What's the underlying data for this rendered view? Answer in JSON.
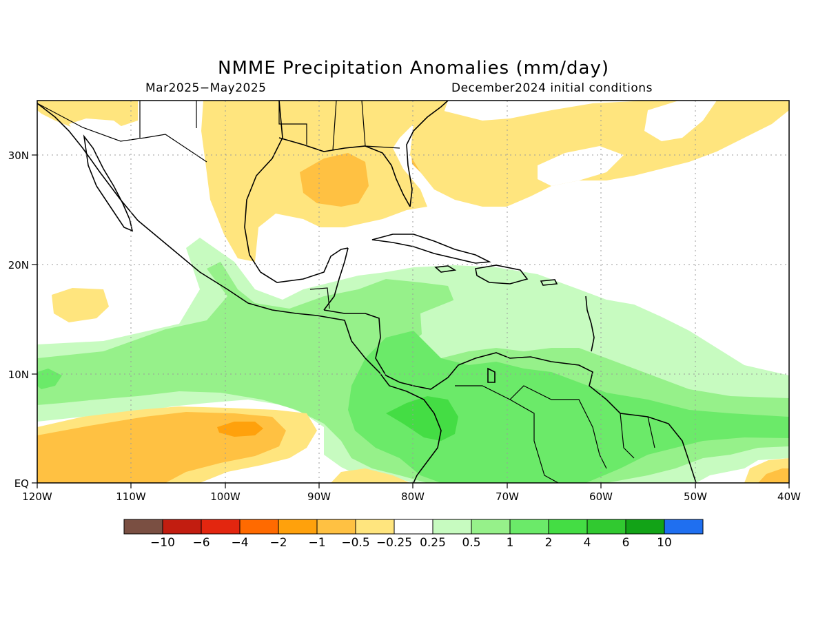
{
  "title": "NMME Precipitation Anomalies (mm/day)",
  "period": "Mar2025−May2025",
  "initial_conditions": "December2024 initial conditions",
  "map": {
    "lon_range": [
      -120,
      -40
    ],
    "lat_range": [
      0,
      35
    ],
    "x_ticks": [
      {
        "lon": -120,
        "label": "120W"
      },
      {
        "lon": -110,
        "label": "110W"
      },
      {
        "lon": -100,
        "label": "100W"
      },
      {
        "lon": -90,
        "label": "90W"
      },
      {
        "lon": -80,
        "label": "80W"
      },
      {
        "lon": -70,
        "label": "70W"
      },
      {
        "lon": -60,
        "label": "60W"
      },
      {
        "lon": -50,
        "label": "50W"
      },
      {
        "lon": -40,
        "label": "40W"
      }
    ],
    "y_ticks": [
      {
        "lat": 0,
        "label": "EQ"
      },
      {
        "lat": 10,
        "label": "10N"
      },
      {
        "lat": 20,
        "label": "20N"
      },
      {
        "lat": 30,
        "label": "30N"
      }
    ],
    "gridlines": "dotted"
  },
  "colorbar": {
    "colors": [
      "#7a4f42",
      "#c21d10",
      "#e3260f",
      "#ff6a00",
      "#ffa10c",
      "#ffc142",
      "#ffe57e",
      "#ffffff",
      "#c7fbc0",
      "#96f18a",
      "#6bea69",
      "#44dd44",
      "#31c930",
      "#12a317",
      "#1f6ff0"
    ],
    "labels": [
      "−10",
      "−6",
      "−4",
      "−2",
      "−1",
      "−0.5",
      "−0.25",
      "0.25",
      "0.5",
      "1",
      "2",
      "4",
      "6",
      "10"
    ]
  },
  "features": [
    {
      "name": "Gulf of Mexico dry anomaly",
      "value": "-0.5",
      "color": "#ffe57e"
    },
    {
      "name": "Gulf of Mexico core dry anomaly",
      "value": "-1",
      "color": "#ffc142"
    },
    {
      "name": "Western Atlantic dry band",
      "value": "-0.5",
      "color": "#ffe57e"
    },
    {
      "name": "Eastern Pacific dry anomaly",
      "value": "-1",
      "color": "#ffc142"
    },
    {
      "name": "Eastern Pacific core dry anomaly",
      "value": "-2",
      "color": "#ffa10c"
    },
    {
      "name": "Pacific ITCZ wet band",
      "value": "0.5",
      "color": "#96f18a"
    },
    {
      "name": "Caribbean wet anomaly",
      "value": "0.25",
      "color": "#c7fbc0"
    },
    {
      "name": "Northern South America wet anomaly",
      "value": "1",
      "color": "#6bea69"
    },
    {
      "name": "Panama-Colombia core wet anomaly",
      "value": "2",
      "color": "#44dd44"
    }
  ]
}
